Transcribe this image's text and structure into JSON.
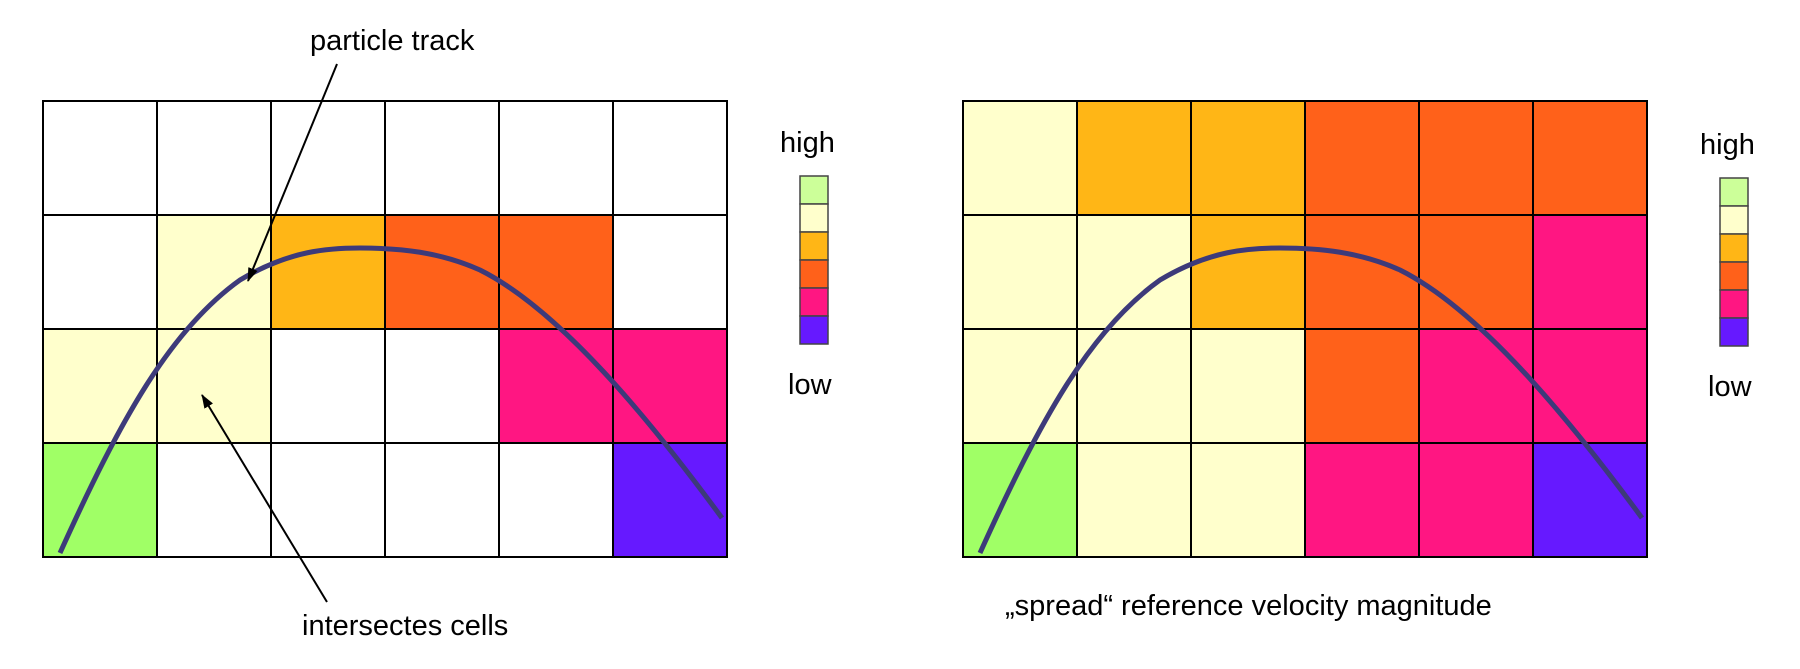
{
  "palette": {
    "white": "#ffffff",
    "pale_yellow": "#ffffcc",
    "amber": "#ffb616",
    "orange": "#ff611a",
    "magenta": "#ff1682",
    "violet": "#6619ff",
    "green": "#a0ff66",
    "light_green": "#ccff99",
    "track": "#3d3a7a"
  },
  "left_diagram": {
    "annotation_top": "particle track",
    "annotation_bottom": "intersectes cells",
    "legend_high": "high",
    "legend_low": "low",
    "grid": [
      [
        "white",
        "white",
        "white",
        "white",
        "white",
        "white"
      ],
      [
        "white",
        "pale_yellow",
        "amber",
        "orange",
        "orange",
        "white"
      ],
      [
        "pale_yellow",
        "pale_yellow",
        "white",
        "white",
        "magenta",
        "magenta"
      ],
      [
        "green",
        "white",
        "white",
        "white",
        "white",
        "violet"
      ]
    ]
  },
  "right_diagram": {
    "caption": "„spread“ reference velocity magnitude",
    "legend_high": "high",
    "legend_low": "low",
    "grid": [
      [
        "pale_yellow",
        "amber",
        "amber",
        "orange",
        "orange",
        "orange"
      ],
      [
        "pale_yellow",
        "pale_yellow",
        "amber",
        "orange",
        "orange",
        "magenta"
      ],
      [
        "pale_yellow",
        "pale_yellow",
        "pale_yellow",
        "orange",
        "magenta",
        "magenta"
      ],
      [
        "green",
        "pale_yellow",
        "pale_yellow",
        "magenta",
        "magenta",
        "violet"
      ]
    ]
  },
  "legend_scale": [
    "light_green",
    "pale_yellow",
    "amber",
    "orange",
    "magenta",
    "violet"
  ]
}
